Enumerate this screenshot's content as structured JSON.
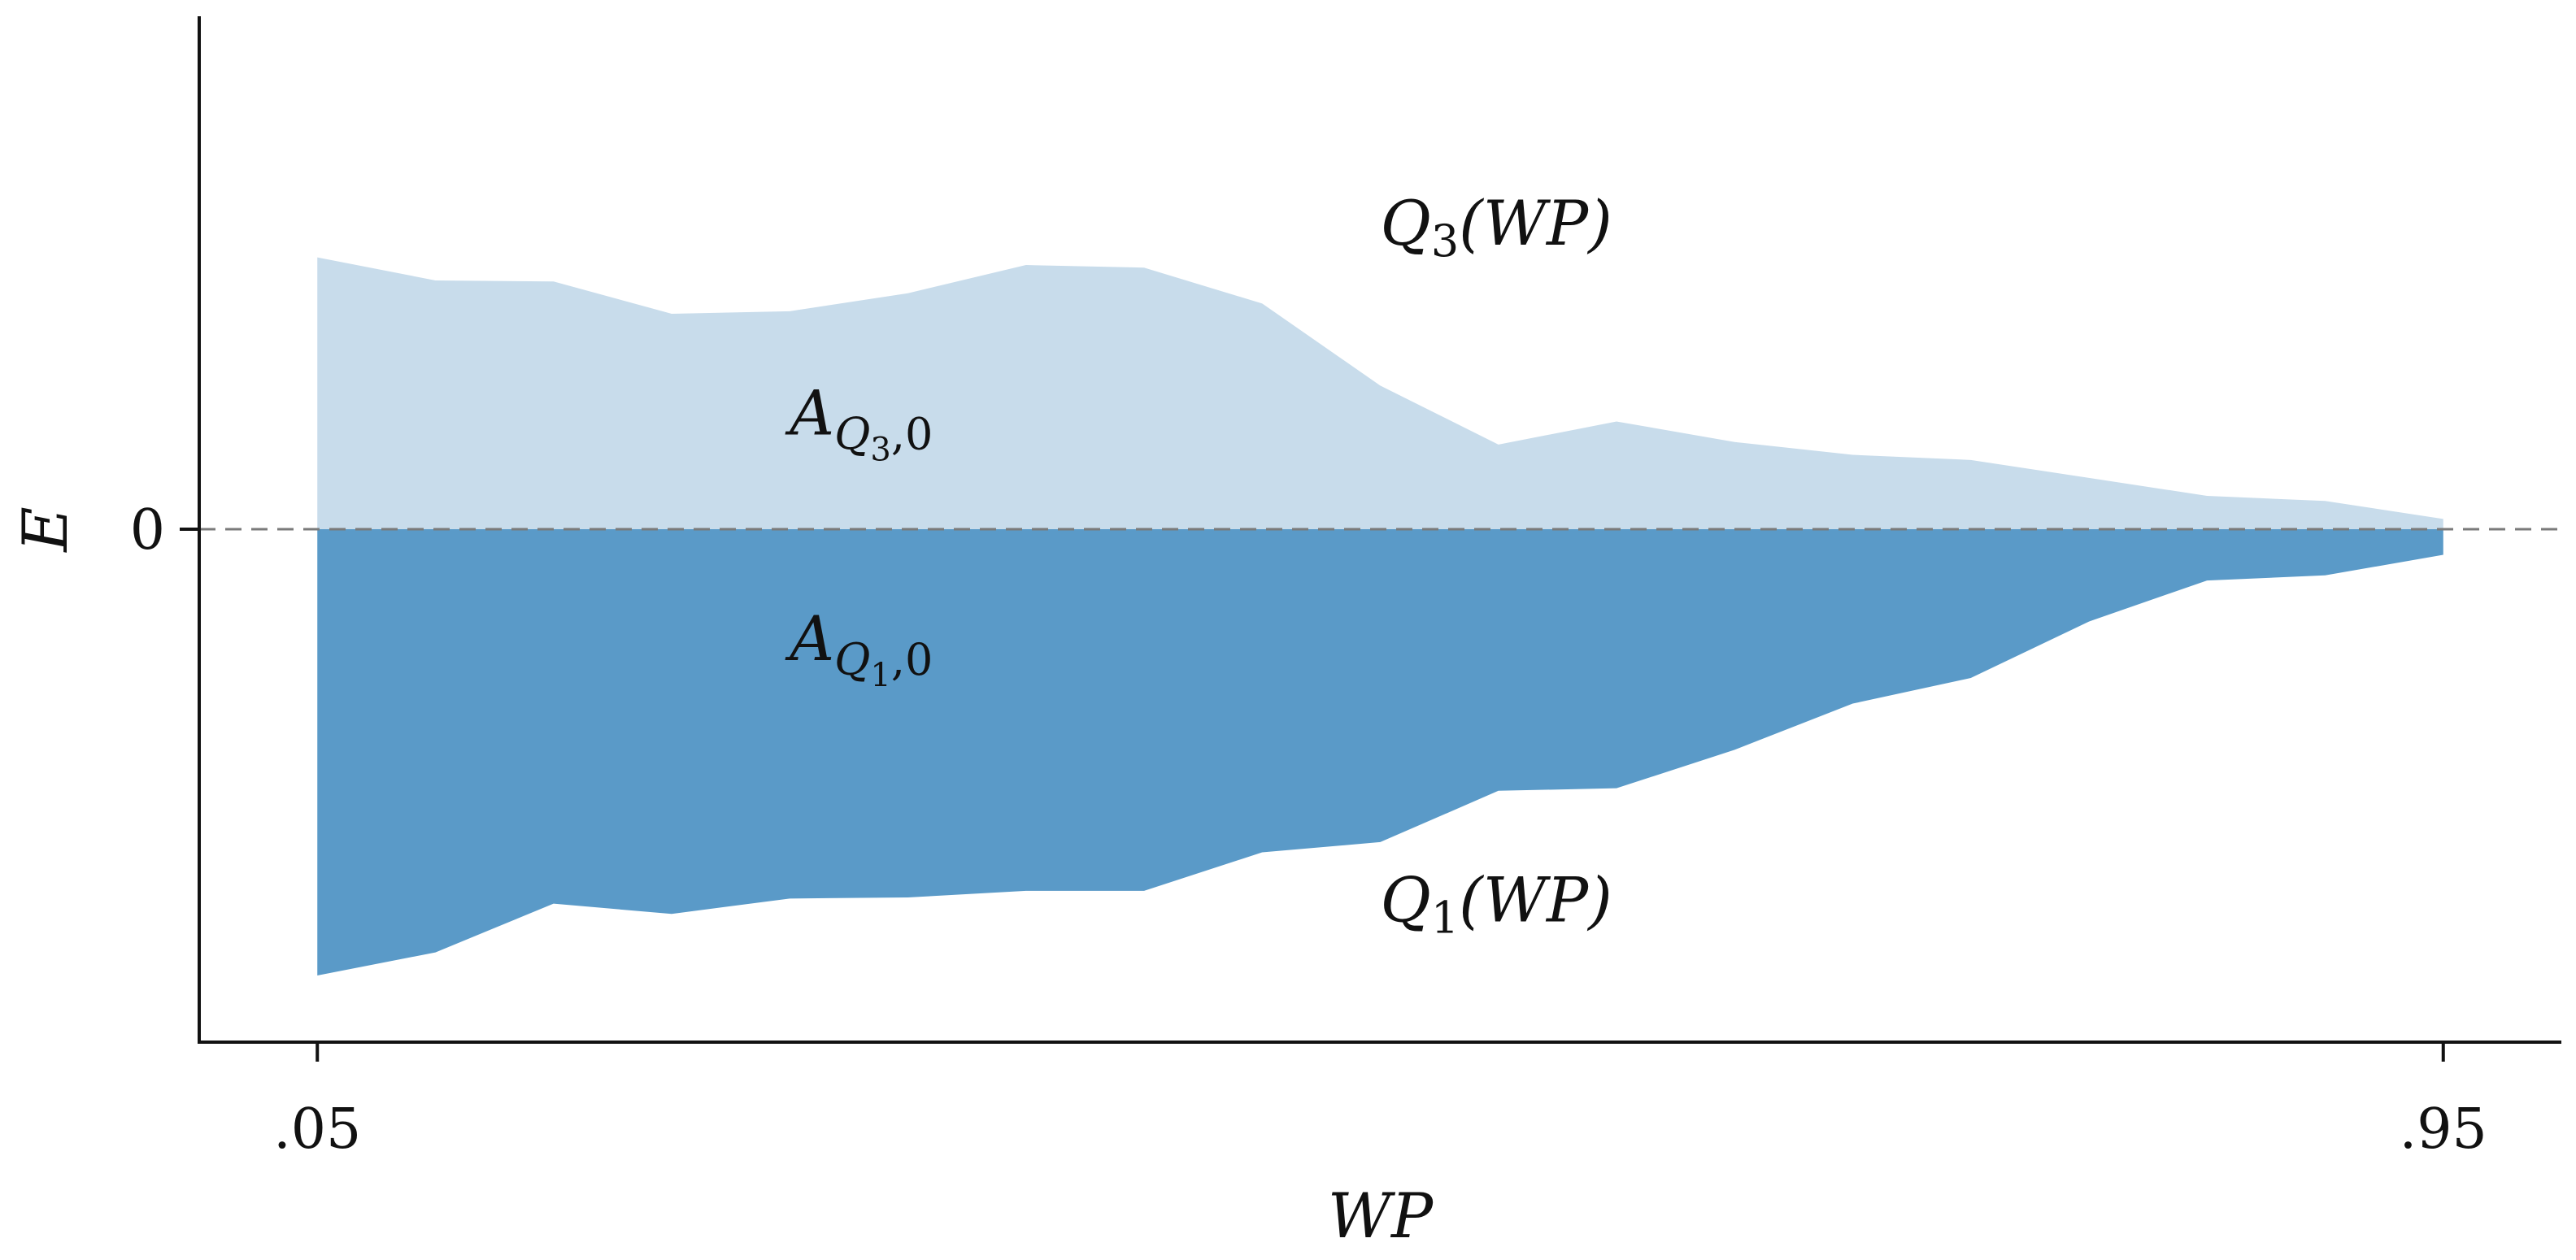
{
  "chart_data": {
    "type": "area",
    "xlabel": "WP",
    "ylabel": "E",
    "x_tick_labels": [
      ".05",
      ".95"
    ],
    "y_tick_labels": [
      "0"
    ],
    "grid": false,
    "legend": "none",
    "xlim": [
      0.0,
      1.0
    ],
    "ylim": [
      -1.0,
      1.0
    ],
    "x_ticks": [
      0.05,
      0.95
    ],
    "y_ticks": [
      0
    ],
    "baseline": 0,
    "x": [
      0.05,
      0.1,
      0.15,
      0.2,
      0.25,
      0.3,
      0.35,
      0.4,
      0.45,
      0.5,
      0.55,
      0.6,
      0.65,
      0.7,
      0.75,
      0.8,
      0.85,
      0.9,
      0.95
    ],
    "series": [
      {
        "values": [
          0.53,
          0.485,
          0.483,
          0.42,
          0.425,
          0.46,
          0.515,
          0.51,
          0.44,
          0.28,
          0.165,
          0.21,
          0.17,
          0.145,
          0.135,
          0.1,
          0.065,
          0.055,
          0.02
        ],
        "color": "#c8dceb"
      },
      {
        "values": [
          -0.87,
          -0.825,
          -0.73,
          -0.75,
          -0.72,
          -0.718,
          -0.705,
          -0.705,
          -0.63,
          -0.61,
          -0.51,
          -0.505,
          -0.43,
          -0.34,
          -0.29,
          -0.18,
          -0.1,
          -0.09,
          -0.05
        ],
        "color": "#5a9ac8"
      }
    ],
    "annotations": [
      {
        "id": "q3",
        "main": "Q",
        "sub": "3",
        "tail": "(WP)",
        "x": 0.5,
        "y": 0.555
      },
      {
        "id": "aq3",
        "main": "A",
        "sub": "Q",
        "subsub": "3",
        "subtail": ",0",
        "x": 0.25,
        "y": 0.185
      },
      {
        "id": "aq1",
        "main": "A",
        "sub": "Q",
        "subsub": "1",
        "subtail": ",0",
        "x": 0.25,
        "y": -0.255
      },
      {
        "id": "q1",
        "main": "Q",
        "sub": "1",
        "tail": "(WP)",
        "x": 0.5,
        "y": -0.765
      }
    ],
    "zero_line_color": "#7a7a7a"
  }
}
